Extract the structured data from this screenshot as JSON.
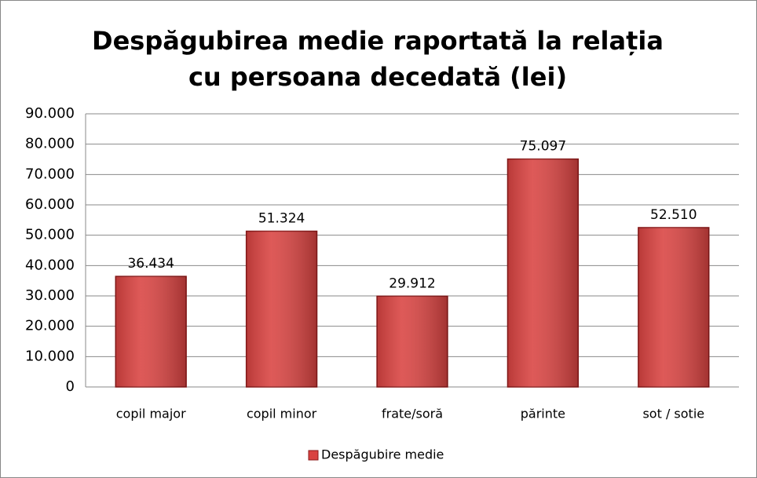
{
  "chart_data": {
    "type": "bar",
    "title": "Despăgubirea medie raportată la relația cu persoana decedată (lei)",
    "categories": [
      "copil major",
      "copil minor",
      "frate/soră",
      "părinte",
      "sot / sotie"
    ],
    "series": [
      {
        "name": "Despăgubire medie",
        "color": "#d94341",
        "values": [
          36434,
          51324,
          29912,
          75097,
          52510
        ],
        "value_labels": [
          "36.434",
          "51.324",
          "29.912",
          "75.097",
          "52.510"
        ]
      }
    ],
    "ylim": [
      0,
      90000
    ],
    "yticks": [
      0,
      {
        "value": 10000,
        "label": "10.000"
      },
      {
        "value": 20000,
        "label": "20.000"
      },
      {
        "value": 30000,
        "label": "30.000"
      },
      {
        "value": 40000,
        "label": "40.000"
      },
      {
        "value": 50000,
        "label": "50.000"
      },
      {
        "value": 60000,
        "label": "60.000"
      },
      {
        "value": 70000,
        "label": "70.000"
      },
      {
        "value": 80000,
        "label": "80.000"
      },
      {
        "value": 90000,
        "label": "90.000"
      }
    ],
    "grid": true,
    "legend": "bottom"
  }
}
